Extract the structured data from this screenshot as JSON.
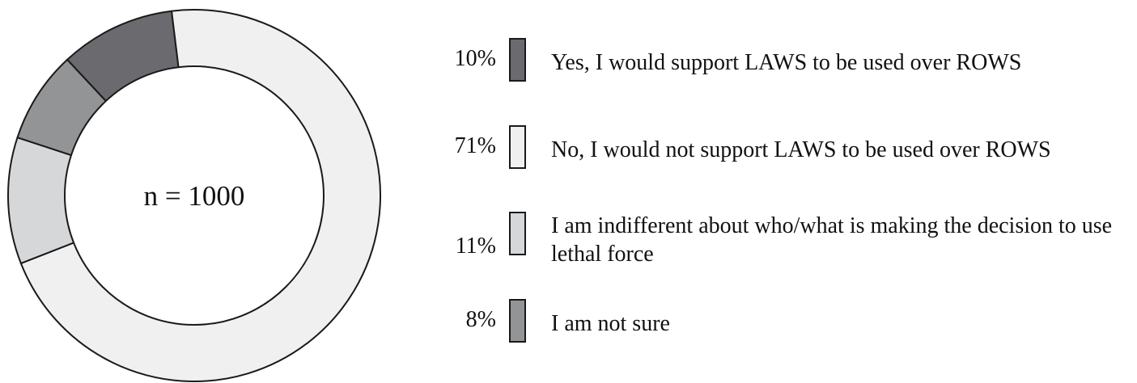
{
  "chart_data": {
    "type": "pie",
    "variant": "donut",
    "center_label": "n = 1000",
    "slices": [
      {
        "label": "No, I would not support LAWS to be used over ROWS",
        "value": 71,
        "value_label": "71%",
        "color": "#f0f0f0"
      },
      {
        "label": "I am indifferent about who/what is making the decision to use lethal force",
        "value": 11,
        "value_label": "11%",
        "color": "#d6d7d9"
      },
      {
        "label": "I am not sure",
        "value": 8,
        "value_label": "8%",
        "color": "#939496"
      },
      {
        "label": "Yes, I would support LAWS to be used over ROWS",
        "value": 10,
        "value_label": "10%",
        "color": "#6b6b6f"
      }
    ],
    "legend": [
      {
        "pct": "10%",
        "label": "Yes, I would support LAWS to be used over ROWS",
        "color": "#6b6b6f"
      },
      {
        "pct": "71%",
        "label": "No, I would not support LAWS to be used over ROWS",
        "color": "#f0f0f0"
      },
      {
        "pct": "11%",
        "label": "I am indifferent about who/what is making the decision to use lethal force",
        "color": "#d6d7d9"
      },
      {
        "pct": "8%",
        "label": "I am not sure",
        "color": "#939496"
      }
    ],
    "legend_placement": "right"
  }
}
